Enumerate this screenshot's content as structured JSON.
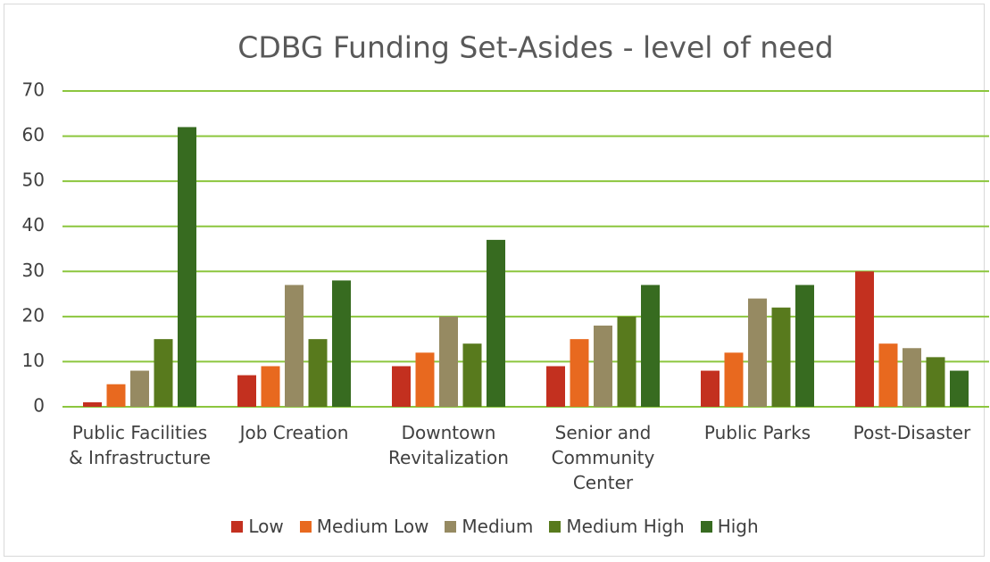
{
  "chart_data": {
    "type": "bar",
    "title": "CDBG Funding Set-Asides - level of need",
    "categories": [
      "Public Facilities & Infrastructure",
      "Job Creation",
      "Downtown Revitalization",
      "Senior and Community Center",
      "Public Parks",
      "Post-Disaster"
    ],
    "series": [
      {
        "name": "Low",
        "color": "#c3301f",
        "values": [
          1,
          7,
          9,
          9,
          8,
          30
        ]
      },
      {
        "name": "Medium Low",
        "color": "#e8691f",
        "values": [
          5,
          9,
          12,
          15,
          12,
          14
        ]
      },
      {
        "name": "Medium",
        "color": "#968a62",
        "values": [
          8,
          27,
          20,
          18,
          24,
          13
        ]
      },
      {
        "name": "Medium High",
        "color": "#587a1d",
        "values": [
          15,
          15,
          14,
          20,
          22,
          11
        ]
      },
      {
        "name": "High",
        "color": "#376b20",
        "values": [
          62,
          28,
          37,
          27,
          27,
          8
        ]
      }
    ],
    "ylim": [
      0,
      70
    ],
    "yticks": [
      0,
      10,
      20,
      30,
      40,
      50,
      60,
      70
    ],
    "grid": true,
    "grid_color": "#8cc63e",
    "legend": "bottom"
  }
}
